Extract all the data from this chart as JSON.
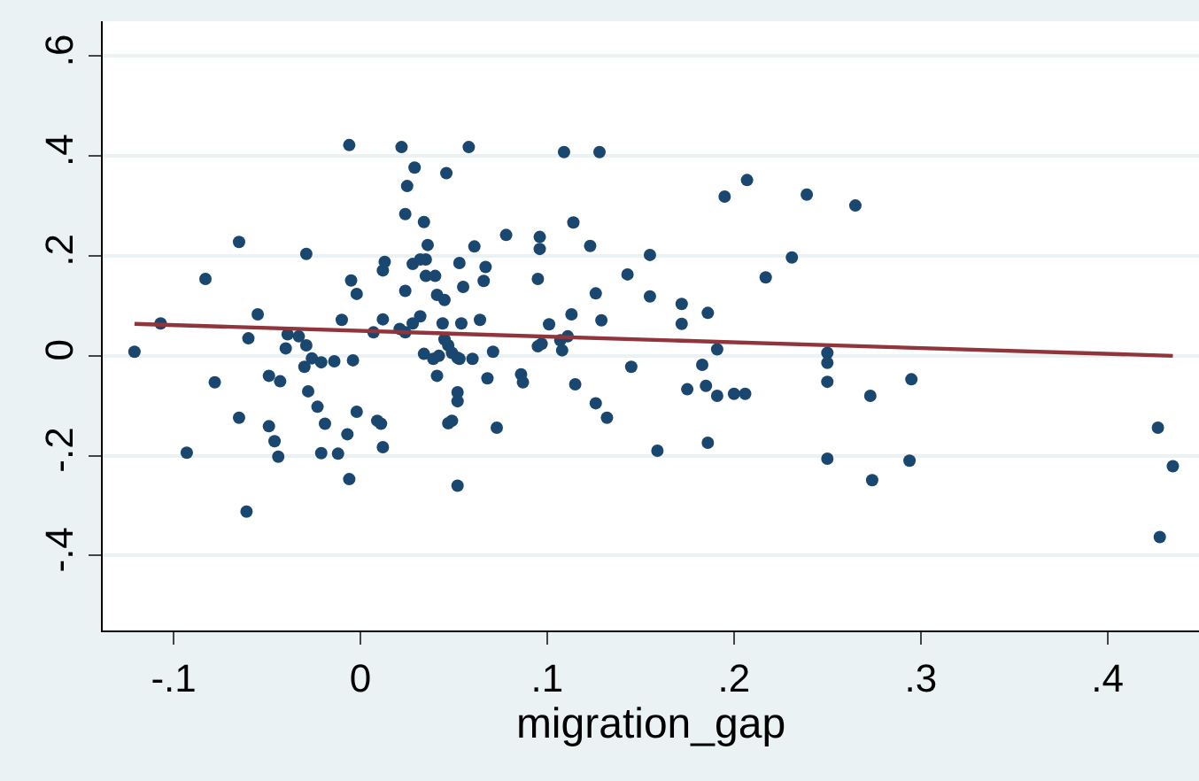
{
  "chart_data": {
    "type": "scatter",
    "xlabel": "migration_gap",
    "xlim": [
      -0.138,
      0.449
    ],
    "ylim": [
      -0.55,
      0.67
    ],
    "xticks": [
      {
        "value": -0.1,
        "label": "-.1"
      },
      0,
      {
        "value": 0.1,
        "label": ".1"
      },
      {
        "value": 0.2,
        "label": ".2"
      },
      {
        "value": 0.3,
        "label": ".3"
      },
      {
        "value": 0.4,
        "label": ".4"
      }
    ],
    "yticks": [
      {
        "value": -0.4,
        "label": "-.4"
      },
      {
        "value": -0.2,
        "label": "-.2"
      },
      0,
      {
        "value": 0.2,
        "label": ".2"
      },
      {
        "value": 0.4,
        "label": ".4"
      },
      {
        "value": 0.6,
        "label": ".6"
      }
    ],
    "grid": "y",
    "series": [
      {
        "color": "#1a476f",
        "marker": "circle",
        "x": [
          -0.121,
          -0.107,
          -0.083,
          -0.078,
          -0.093,
          -0.065,
          -0.065,
          -0.061,
          -0.06,
          -0.055,
          -0.049,
          -0.049,
          -0.046,
          -0.044,
          -0.043,
          -0.04,
          -0.039,
          -0.033,
          -0.029,
          -0.029,
          -0.03,
          -0.026,
          -0.028,
          -0.023,
          -0.021,
          -0.019,
          -0.021,
          -0.014,
          -0.012,
          -0.01,
          -0.007,
          -0.006,
          -0.006,
          -0.005,
          -0.004,
          -0.002,
          -0.002,
          0.007,
          0.009,
          0.011,
          0.012,
          0.012,
          0.013,
          0.012,
          0.022,
          0.024,
          0.024,
          0.021,
          0.024,
          0.025,
          0.029,
          0.028,
          0.028,
          0.032,
          0.032,
          0.034,
          0.035,
          0.036,
          0.035,
          0.04,
          0.034,
          0.041,
          0.039,
          0.041,
          0.042,
          0.044,
          0.045,
          0.046,
          0.045,
          0.047,
          0.049,
          0.052,
          0.053,
          0.052,
          0.052,
          0.047,
          0.049,
          0.052,
          0.053,
          0.055,
          0.054,
          0.058,
          0.061,
          0.06,
          0.064,
          0.066,
          0.067,
          0.068,
          0.071,
          0.073,
          0.078,
          0.086,
          0.087,
          0.095,
          0.096,
          0.096,
          0.095,
          0.097,
          0.101,
          0.108,
          0.107,
          0.109,
          0.111,
          0.113,
          0.114,
          0.115,
          0.123,
          0.128,
          0.126,
          0.126,
          0.129,
          0.132,
          0.143,
          0.145,
          0.155,
          0.155,
          0.159,
          0.172,
          0.172,
          0.175,
          0.183,
          0.185,
          0.186,
          0.186,
          0.191,
          0.191,
          0.195,
          0.2,
          0.206,
          0.207,
          0.217,
          0.231,
          0.239,
          0.25,
          0.25,
          0.25,
          0.25,
          0.265,
          0.273,
          0.274,
          0.294,
          0.295,
          0.427,
          0.435,
          0.428
        ],
        "values": [
          0.008,
          0.065,
          0.154,
          -0.053,
          -0.194,
          0.228,
          -0.124,
          -0.312,
          0.035,
          0.083,
          -0.04,
          -0.141,
          -0.171,
          -0.202,
          -0.051,
          0.015,
          0.043,
          0.039,
          0.204,
          0.021,
          -0.022,
          -0.005,
          -0.071,
          -0.102,
          -0.013,
          -0.136,
          -0.195,
          -0.011,
          -0.196,
          0.072,
          -0.157,
          0.422,
          -0.247,
          0.151,
          -0.009,
          0.124,
          -0.112,
          0.047,
          -0.13,
          -0.136,
          0.073,
          0.171,
          0.188,
          -0.183,
          0.418,
          0.284,
          0.13,
          0.054,
          0.047,
          0.34,
          0.377,
          0.184,
          0.065,
          0.079,
          0.193,
          0.268,
          0.193,
          0.222,
          0.16,
          0.16,
          0.004,
          0.122,
          -0.006,
          -0.04,
          0.0,
          0.065,
          0.112,
          0.366,
          0.033,
          0.021,
          0.006,
          -0.004,
          -0.006,
          -0.073,
          -0.091,
          -0.135,
          -0.13,
          -0.26,
          0.186,
          0.138,
          0.065,
          0.418,
          0.219,
          -0.006,
          0.072,
          0.15,
          0.178,
          -0.045,
          0.008,
          -0.144,
          0.242,
          -0.037,
          -0.053,
          0.154,
          0.238,
          0.214,
          0.019,
          0.024,
          0.063,
          0.011,
          0.031,
          0.408,
          0.039,
          0.083,
          0.267,
          -0.057,
          0.22,
          0.408,
          0.125,
          -0.095,
          0.071,
          -0.124,
          0.163,
          -0.022,
          0.202,
          0.119,
          -0.19,
          0.104,
          0.064,
          -0.067,
          -0.018,
          -0.06,
          -0.174,
          0.086,
          0.013,
          -0.08,
          0.319,
          -0.076,
          -0.076,
          0.352,
          0.157,
          0.197,
          0.323,
          0.006,
          -0.014,
          -0.052,
          -0.206,
          0.301,
          -0.08,
          -0.249,
          -0.21,
          -0.047,
          -0.144,
          -0.221,
          -0.363
        ]
      },
      {
        "type": "line",
        "color": "#90353b",
        "marker": "none",
        "x": [
          -0.121,
          0.435
        ],
        "values": [
          0.064,
          0.0
        ]
      }
    ]
  }
}
